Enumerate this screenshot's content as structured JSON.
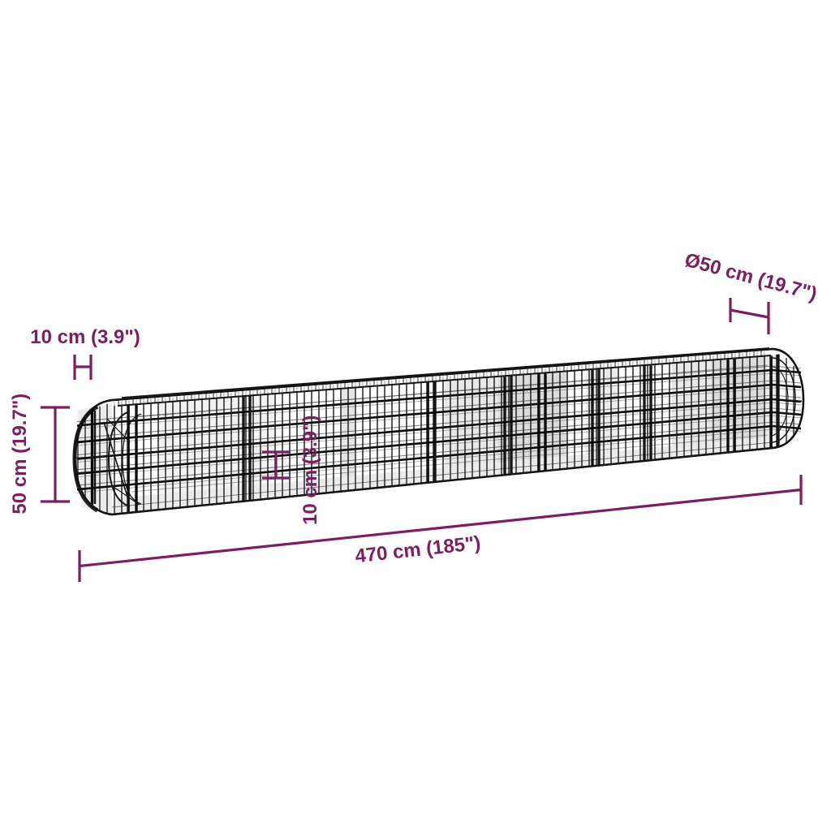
{
  "colors": {
    "background": "#ffffff",
    "dimension_text": "#7c1e62",
    "wire": "#141414"
  },
  "illustration": {
    "subject": "wire-mesh-gabion-raised-bed-wireframe"
  },
  "labels": {
    "top_left": "10 cm (3.9\")",
    "top_right": "Ø50 cm (19.7\")",
    "left": "50 cm (19.7\")",
    "middle": "10 cm (3.9\")",
    "bottom": "470 cm (185\")"
  }
}
